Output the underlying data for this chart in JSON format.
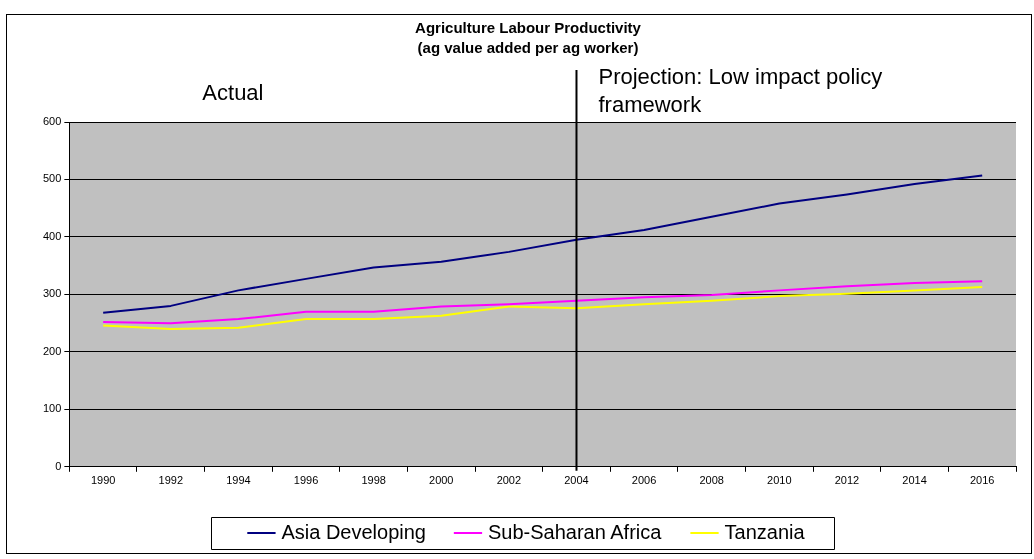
{
  "chart_data": {
    "type": "line",
    "title": "Agriculture Labour Productivity",
    "subtitle": "(ag value added per ag worker)",
    "categories": [
      "1990",
      "1992",
      "1994",
      "1996",
      "1998",
      "2000",
      "2002",
      "2004",
      "2006",
      "2008",
      "2010",
      "2012",
      "2014",
      "2016"
    ],
    "series": [
      {
        "name": "Asia Developing",
        "color": "#000080",
        "values": [
          268,
          280,
          307,
          327,
          347,
          357,
          374,
          395,
          412,
          435,
          458,
          474,
          492,
          507
        ]
      },
      {
        "name": "Sub-Saharan Africa",
        "color": "#ff00ff",
        "values": [
          252,
          250,
          257,
          270,
          270,
          279,
          283,
          289,
          295,
          299,
          307,
          314,
          320,
          323
        ]
      },
      {
        "name": "Tanzania",
        "color": "#ffff00",
        "values": [
          246,
          240,
          242,
          257,
          257,
          263,
          279,
          276,
          283,
          289,
          297,
          301,
          307,
          313
        ]
      }
    ],
    "ylim": [
      0,
      600
    ],
    "yticks": [
      0,
      100,
      200,
      300,
      400,
      500,
      600
    ],
    "grid": "y",
    "legend": "bottom",
    "marker": "none",
    "line_style": "solid",
    "ref_lines": [
      {
        "axis": "x",
        "value": "2004",
        "color": "#000000"
      }
    ],
    "annotations": [
      "Actual",
      "Projection: Low impact policy framework"
    ]
  }
}
